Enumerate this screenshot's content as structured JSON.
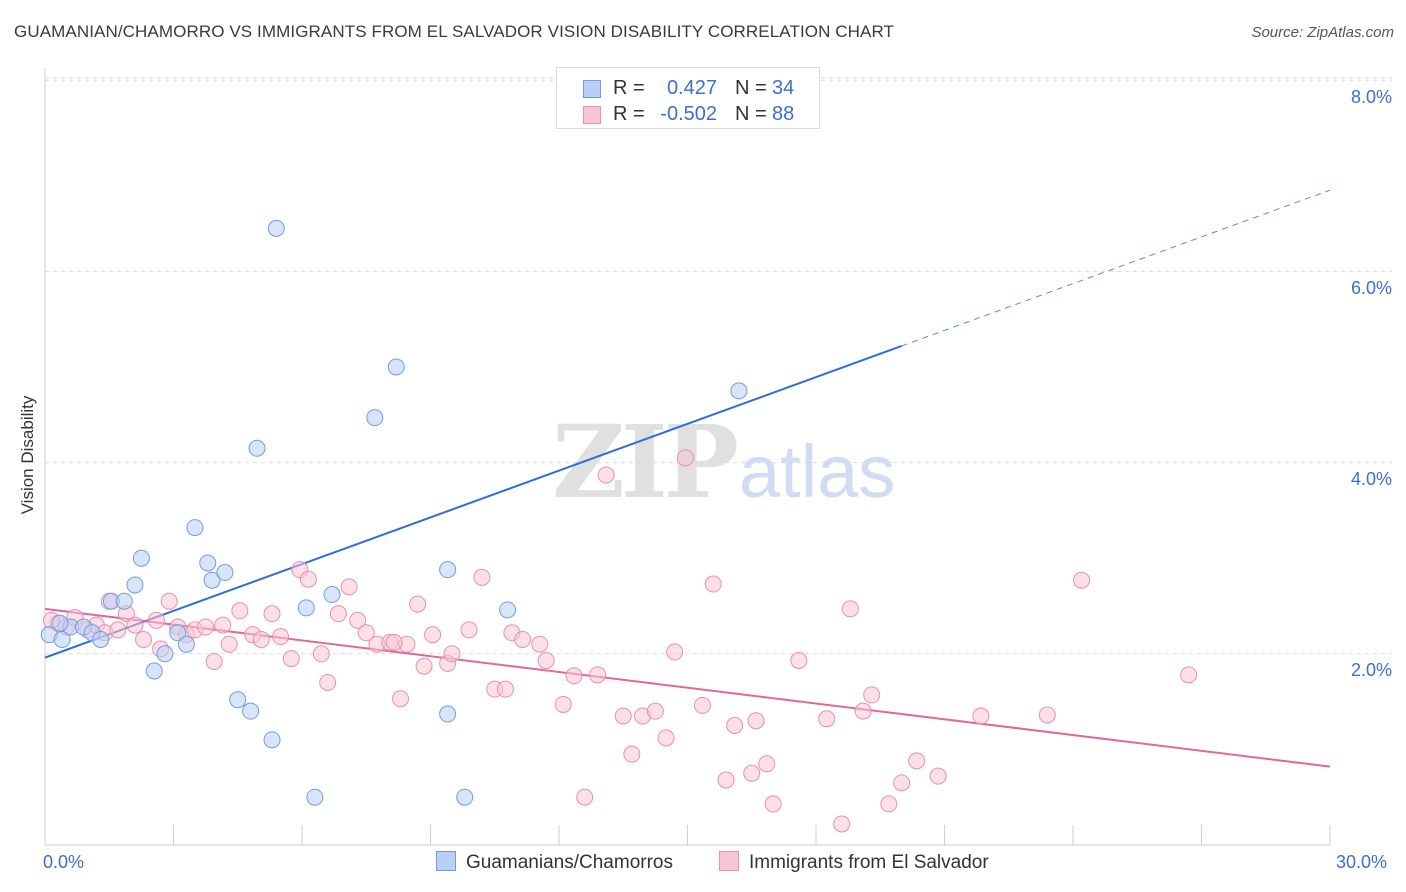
{
  "header": {
    "title": "GUAMANIAN/CHAMORRO VS IMMIGRANTS FROM EL SALVADOR VISION DISABILITY CORRELATION CHART",
    "source": "Source: ZipAtlas.com"
  },
  "watermark": {
    "zip": "ZIP",
    "atlas": "atlas"
  },
  "legend_top": {
    "rows": [
      {
        "r_label": "R =",
        "r_value": "0.427",
        "n_label": "N =",
        "n_value": "34"
      },
      {
        "r_label": "R =",
        "r_value": "-0.502",
        "n_label": "N =",
        "n_value": "88"
      }
    ]
  },
  "legend_bottom": {
    "items": [
      {
        "label": "Guamanians/Chamorros"
      },
      {
        "label": "Immigrants from El Salvador"
      }
    ]
  },
  "axes": {
    "ylabel": "Vision Disability",
    "x_ticks": [
      "0.0%",
      "30.0%"
    ],
    "y_ticks": [
      "2.0%",
      "4.0%",
      "6.0%",
      "8.0%"
    ]
  },
  "colors": {
    "blue_fill": "#b8d0f3",
    "blue_stroke": "#6f9ee0",
    "blue_line": "#2f6fd0",
    "pink_fill": "#f7c6d5",
    "pink_stroke": "#ea8fae",
    "pink_line": "#e2679a",
    "grid": "#d9d9d9",
    "tick_text": "#3b6fcf"
  },
  "chart_data": {
    "type": "scatter",
    "title": "GUAMANIAN/CHAMORRO VS IMMIGRANTS FROM EL SALVADOR VISION DISABILITY CORRELATION CHART",
    "xlabel": "",
    "ylabel": "Vision Disability",
    "xlim": [
      0,
      30
    ],
    "ylim": [
      0,
      8.4
    ],
    "x_unit": "%",
    "y_unit": "%",
    "grid": true,
    "legend_position": "bottom",
    "series": [
      {
        "name": "Guamanians/Chamorros",
        "color": "#6f9ee0",
        "r": 0.427,
        "n": 34,
        "trend": {
          "x0": 0,
          "y0": 1.96,
          "x1": 20,
          "y1": 5.22,
          "dashed_to_x": 30,
          "dashed_to_y": 6.85
        },
        "points": [
          [
            0.1,
            2.2
          ],
          [
            0.4,
            2.15
          ],
          [
            0.6,
            2.28
          ],
          [
            0.9,
            2.28
          ],
          [
            1.1,
            2.22
          ],
          [
            1.3,
            2.15
          ],
          [
            1.55,
            2.55
          ],
          [
            1.85,
            2.55
          ],
          [
            2.1,
            2.72
          ],
          [
            2.25,
            3.0
          ],
          [
            2.55,
            1.82
          ],
          [
            2.8,
            2.0
          ],
          [
            3.1,
            2.22
          ],
          [
            3.3,
            2.1
          ],
          [
            3.5,
            3.32
          ],
          [
            3.8,
            2.95
          ],
          [
            3.9,
            2.77
          ],
          [
            4.2,
            2.85
          ],
          [
            4.5,
            1.52
          ],
          [
            4.8,
            1.4
          ],
          [
            4.95,
            4.15
          ],
          [
            5.3,
            1.1
          ],
          [
            5.4,
            6.45
          ],
          [
            6.1,
            2.48
          ],
          [
            6.3,
            0.5
          ],
          [
            6.7,
            2.62
          ],
          [
            7.7,
            4.47
          ],
          [
            8.2,
            5.0
          ],
          [
            9.4,
            2.88
          ],
          [
            9.4,
            1.37
          ],
          [
            9.8,
            0.5
          ],
          [
            10.8,
            2.46
          ],
          [
            16.2,
            4.75
          ],
          [
            0.35,
            2.32
          ]
        ]
      },
      {
        "name": "Immigrants from El Salvador",
        "color": "#ea8fae",
        "r": -0.502,
        "n": 88,
        "trend": {
          "x0": 0,
          "y0": 2.47,
          "x1": 30,
          "y1": 0.82
        },
        "points": [
          [
            0.3,
            2.32
          ],
          [
            0.5,
            2.28
          ],
          [
            0.7,
            2.38
          ],
          [
            1.0,
            2.25
          ],
          [
            1.2,
            2.3
          ],
          [
            1.4,
            2.22
          ],
          [
            1.5,
            2.55
          ],
          [
            1.7,
            2.25
          ],
          [
            1.9,
            2.42
          ],
          [
            2.1,
            2.3
          ],
          [
            2.3,
            2.15
          ],
          [
            2.6,
            2.35
          ],
          [
            2.7,
            2.05
          ],
          [
            2.9,
            2.55
          ],
          [
            3.1,
            2.28
          ],
          [
            3.3,
            2.2
          ],
          [
            3.5,
            2.25
          ],
          [
            3.75,
            2.28
          ],
          [
            3.95,
            1.92
          ],
          [
            4.15,
            2.3
          ],
          [
            4.3,
            2.1
          ],
          [
            4.55,
            2.45
          ],
          [
            4.85,
            2.2
          ],
          [
            5.05,
            2.15
          ],
          [
            5.3,
            2.42
          ],
          [
            5.5,
            2.18
          ],
          [
            5.75,
            1.95
          ],
          [
            5.95,
            2.88
          ],
          [
            6.15,
            2.78
          ],
          [
            6.45,
            2.0
          ],
          [
            6.6,
            1.7
          ],
          [
            6.85,
            2.42
          ],
          [
            7.1,
            2.7
          ],
          [
            7.3,
            2.35
          ],
          [
            7.5,
            2.22
          ],
          [
            7.75,
            2.1
          ],
          [
            8.05,
            2.12
          ],
          [
            8.3,
            1.53
          ],
          [
            8.45,
            2.1
          ],
          [
            8.7,
            2.52
          ],
          [
            8.85,
            1.87
          ],
          [
            9.05,
            2.2
          ],
          [
            9.4,
            1.9
          ],
          [
            9.5,
            2.0
          ],
          [
            9.9,
            2.25
          ],
          [
            10.2,
            2.8
          ],
          [
            10.5,
            1.63
          ],
          [
            10.75,
            1.63
          ],
          [
            10.9,
            2.22
          ],
          [
            11.15,
            2.15
          ],
          [
            11.55,
            2.1
          ],
          [
            11.7,
            1.93
          ],
          [
            12.1,
            1.47
          ],
          [
            12.35,
            1.77
          ],
          [
            12.6,
            0.5
          ],
          [
            12.9,
            1.78
          ],
          [
            13.1,
            3.87
          ],
          [
            13.5,
            1.35
          ],
          [
            13.7,
            0.95
          ],
          [
            13.95,
            1.35
          ],
          [
            14.25,
            1.4
          ],
          [
            14.5,
            1.12
          ],
          [
            14.7,
            2.02
          ],
          [
            14.95,
            4.05
          ],
          [
            15.35,
            1.46
          ],
          [
            15.6,
            2.73
          ],
          [
            15.9,
            0.68
          ],
          [
            16.1,
            1.25
          ],
          [
            16.5,
            0.75
          ],
          [
            16.6,
            1.3
          ],
          [
            16.85,
            0.85
          ],
          [
            17.0,
            0.43
          ],
          [
            17.6,
            1.93
          ],
          [
            18.25,
            1.32
          ],
          [
            18.8,
            2.47
          ],
          [
            19.1,
            1.4
          ],
          [
            19.3,
            1.57
          ],
          [
            19.7,
            0.43
          ],
          [
            20.0,
            0.65
          ],
          [
            20.35,
            0.88
          ],
          [
            20.85,
            0.72
          ],
          [
            21.85,
            1.35
          ],
          [
            23.4,
            1.36
          ],
          [
            24.2,
            2.77
          ],
          [
            26.7,
            1.78
          ],
          [
            18.6,
            0.22
          ],
          [
            8.15,
            2.12
          ],
          [
            0.15,
            2.35
          ]
        ]
      }
    ]
  }
}
